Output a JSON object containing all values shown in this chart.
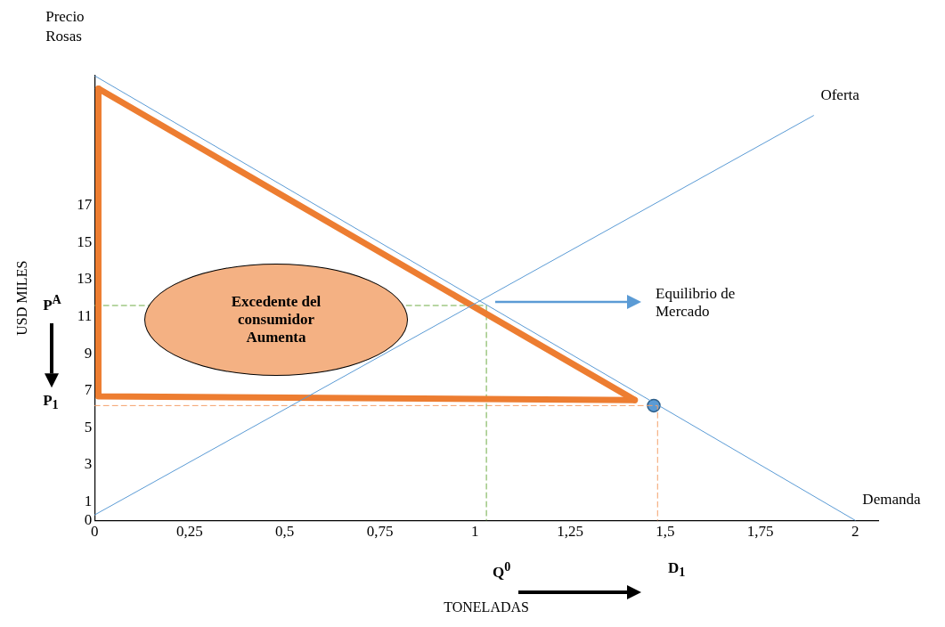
{
  "chart_data": {
    "type": "line",
    "xlabel": "TONELADAS",
    "ylabel": "USD MILES",
    "xlim": [
      0,
      2.06
    ],
    "ylim": [
      0,
      24
    ],
    "xticks": [
      0,
      {
        "value": 0.25,
        "label": "0,25"
      },
      {
        "value": 0.5,
        "label": "0,5"
      },
      {
        "value": 0.75,
        "label": "0,75"
      },
      1,
      {
        "value": 1.25,
        "label": "1,25"
      },
      {
        "value": 1.5,
        "label": "1,5"
      },
      {
        "value": 1.75,
        "label": "1,75"
      },
      2
    ],
    "yticks": [
      0,
      1,
      3,
      5,
      7,
      9,
      11,
      13,
      15,
      17
    ],
    "grid": false,
    "legend": false,
    "marker": "none",
    "series": [
      {
        "name": "Demanda",
        "color": "#5b9bd5",
        "x": [
          0,
          2
        ],
        "values": [
          24,
          0
        ]
      },
      {
        "name": "Oferta",
        "color": "#5b9bd5",
        "x": [
          0,
          1.89
        ],
        "values": [
          0.3,
          21.85
        ]
      },
      {
        "color": "#ed7d31",
        "x": [
          0.01,
          1.42
        ],
        "values": [
          23.3,
          6.5
        ]
      },
      {
        "color": "#ed7d31",
        "x": [
          0.01,
          0.01,
          1.42
        ],
        "values": [
          23.3,
          6.7,
          6.5
        ]
      },
      {
        "color": "#70ad47",
        "x": [
          0,
          1.03,
          1.03
        ],
        "values": [
          11.6,
          11.6,
          0
        ],
        "line_style": "dashed"
      },
      {
        "color": "#f4a06a",
        "x": [
          0,
          1.48,
          1.48
        ],
        "values": [
          6.2,
          6.2,
          0
        ],
        "line_style": "dashed"
      },
      {
        "type": "scatter",
        "color": "#5b9bd5",
        "x": [
          1.47
        ],
        "values": [
          6.2
        ],
        "marker": "circle"
      }
    ],
    "annotations": [
      "Precio Rosas",
      {
        "text": "P$^{A}$",
        "x": 0,
        "y": 11.6
      },
      {
        "text": "P$_{1}$",
        "x": 0,
        "y": 6.2
      },
      "Q$^{0}$",
      "D$_{1}$",
      "Excedente del consumidor Aumenta",
      "Equilibrio de Mercado"
    ]
  }
}
